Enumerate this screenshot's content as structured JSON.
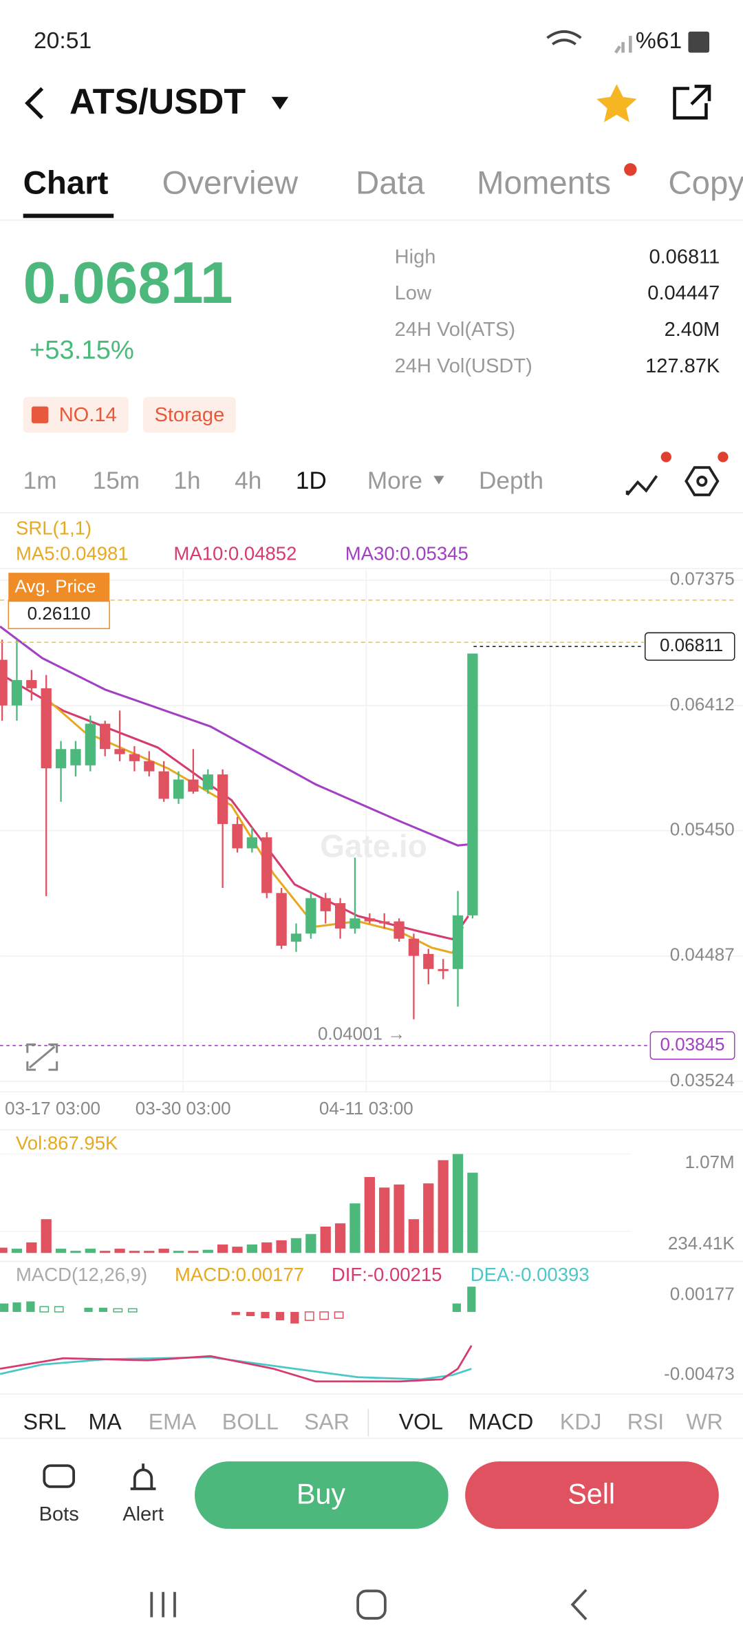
{
  "status_bar": {
    "time": "20:51",
    "battery": "%61"
  },
  "header": {
    "pair": "ATS/USDT"
  },
  "tabs": [
    "Chart",
    "Overview",
    "Data",
    "Moments",
    "Copy"
  ],
  "price": {
    "last": "0.06811",
    "change": "+53.15%"
  },
  "stats": [
    {
      "label": "High",
      "value": "0.06811"
    },
    {
      "label": "Low",
      "value": "0.04447"
    },
    {
      "label": "24H Vol(ATS)",
      "value": "2.40M"
    },
    {
      "label": "24H Vol(USDT)",
      "value": "127.87K"
    }
  ],
  "badges": [
    "NO.14",
    "Storage"
  ],
  "intervals": [
    "1m",
    "15m",
    "1h",
    "4h",
    "1D",
    "More",
    "Depth"
  ],
  "chart_data": {
    "type": "candlestick",
    "indicator": "SRL(1,1)",
    "ma_labels": [
      "MA5:0.04981",
      "MA10:0.04852",
      "MA30:0.05345"
    ],
    "avg_price_label": "Avg. Price",
    "avg_price": "0.26110",
    "last_price_marker": "0.06811",
    "low_marker": "0.04001 →",
    "line_marker": "0.03845",
    "watermark": "Gate.io",
    "x_labels": [
      "03-17 03:00",
      "03-30 03:00",
      "04-11 03:00"
    ],
    "ylim": [
      0.03524,
      0.07375
    ],
    "yticks": [
      0.07375,
      0.06412,
      {
        "value": 0.0545,
        "label": "0.05450"
      },
      0.04487,
      0.03524
    ],
    "up_color": "#4cb87c",
    "down_color": "#e0525f",
    "candles": [
      [
        0.06763,
        0.06918,
        0.06295,
        0.06412
      ],
      [
        0.06412,
        0.06918,
        0.06295,
        0.06607
      ],
      [
        0.06607,
        0.06685,
        0.06451,
        0.06544
      ],
      [
        0.06544,
        0.06646,
        0.04947,
        0.05929
      ],
      [
        0.05929,
        0.06139,
        0.05672,
        0.06077
      ],
      [
        0.05952,
        0.06139,
        0.05867,
        0.06077
      ],
      [
        0.05952,
        0.06334,
        0.05906,
        0.06272
      ],
      [
        0.06272,
        0.06295,
        0.06022,
        0.06077
      ],
      [
        0.06077,
        0.06373,
        0.05984,
        0.06038
      ],
      [
        0.06038,
        0.061,
        0.05906,
        0.05984
      ],
      [
        0.05984,
        0.06061,
        0.05867,
        0.05906
      ],
      [
        0.05906,
        0.05984,
        0.05672,
        0.05695
      ],
      [
        0.05695,
        0.05906,
        0.05656,
        0.05843
      ],
      [
        0.05843,
        0.06077,
        0.05734,
        0.0575
      ],
      [
        0.05765,
        0.05921,
        0.05734,
        0.05882
      ],
      [
        0.05882,
        0.05921,
        0.0501,
        0.05501
      ],
      [
        0.05501,
        0.05555,
        0.05282,
        0.05314
      ],
      [
        0.05314,
        0.05477,
        0.05282,
        0.05399
      ],
      [
        0.05399,
        0.05438,
        0.04932,
        0.04971
      ],
      [
        0.04971,
        0.0501,
        0.04542,
        0.04566
      ],
      [
        0.04597,
        0.04737,
        0.04519,
        0.04659
      ],
      [
        0.04659,
        0.04971,
        0.0462,
        0.04932
      ],
      [
        0.04932,
        0.04971,
        0.04737,
        0.04831
      ],
      [
        0.04893,
        0.04932,
        0.0462,
        0.04698
      ],
      [
        0.04698,
        0.05243,
        0.04659,
        0.04776
      ],
      [
        0.04776,
        0.04815,
        0.04737,
        0.04753
      ],
      [
        0.04753,
        0.04815,
        0.04698,
        0.04737
      ],
      [
        0.04753,
        0.04776,
        0.04597,
        0.0462
      ],
      [
        0.0462,
        0.04659,
        0.04001,
        0.04488
      ],
      [
        0.04503,
        0.04542,
        0.0427,
        0.04387
      ],
      [
        0.04387,
        0.04464,
        0.04309,
        0.04371
      ],
      [
        0.04387,
        0.04986,
        0.04098,
        0.04799
      ],
      [
        0.04799,
        0.06811,
        0.04776,
        0.06811
      ]
    ],
    "volume": {
      "label": "Vol:867.95K",
      "values": [
        57000,
        46000,
        114000,
        365000,
        46000,
        23000,
        46000,
        23000,
        46000,
        23000,
        23000,
        46000,
        23000,
        23000,
        34000,
        91000,
        68000,
        91000,
        114000,
        137000,
        160000,
        205000,
        285000,
        320000,
        536000,
        821000,
        707000,
        740000,
        365000,
        752000,
        1003000,
        1070000,
        867950
      ],
      "ylim": [
        0,
        1070000
      ],
      "yticks": [
        {
          "value": 1070000,
          "label": "1.07M"
        },
        {
          "value": 234410,
          "label": "234.41K"
        }
      ]
    },
    "macd": {
      "labels": [
        "MACD(12,26,9)",
        "MACD:0.00177",
        "DIF:-0.00215",
        "DEA:-0.00393"
      ],
      "axis_labels": [
        "0.00177",
        "-0.00473"
      ]
    }
  },
  "indicator_tabs": [
    "SRL",
    "MA",
    "EMA",
    "BOLL",
    "SAR",
    "VOL",
    "MACD",
    "KDJ",
    "RSI",
    "WR"
  ],
  "actions": {
    "bots": "Bots",
    "alert": "Alert",
    "buy": "Buy",
    "sell": "Sell"
  }
}
